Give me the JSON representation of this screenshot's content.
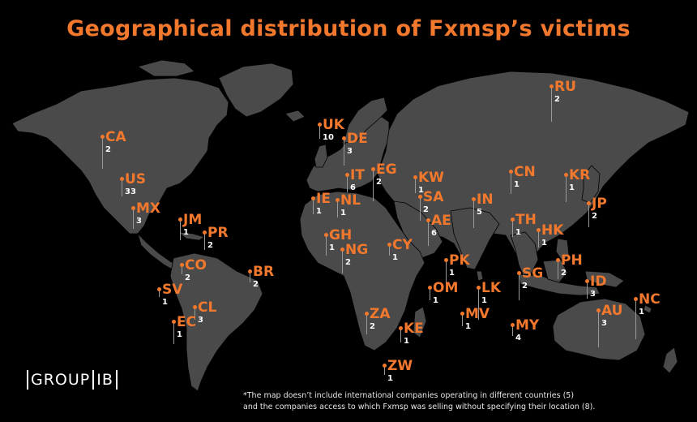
{
  "title": "Geographical distribution of Fxmsp’s victims",
  "colors": {
    "background": "#000000",
    "land": "#4a4a4a",
    "accent": "#f2782d",
    "count_text": "#ffffff",
    "stem": "#9a9a9a"
  },
  "countries": [
    {
      "code": "RU",
      "count": "2"
    },
    {
      "code": "CA",
      "count": "2"
    },
    {
      "code": "UK",
      "count": "10"
    },
    {
      "code": "DE",
      "count": "3"
    },
    {
      "code": "US",
      "count": "33"
    },
    {
      "code": "IT",
      "count": "6"
    },
    {
      "code": "EG",
      "count": "2"
    },
    {
      "code": "KW",
      "count": "1"
    },
    {
      "code": "CN",
      "count": "1"
    },
    {
      "code": "KR",
      "count": "1"
    },
    {
      "code": "IE",
      "count": "1"
    },
    {
      "code": "NL",
      "count": "1"
    },
    {
      "code": "SA",
      "count": "2"
    },
    {
      "code": "IN",
      "count": "5"
    },
    {
      "code": "JP",
      "count": "2"
    },
    {
      "code": "MX",
      "count": "3"
    },
    {
      "code": "JM",
      "count": "1"
    },
    {
      "code": "AE",
      "count": "6"
    },
    {
      "code": "TH",
      "count": "1"
    },
    {
      "code": "PR",
      "count": "2"
    },
    {
      "code": "GH",
      "count": "1"
    },
    {
      "code": "HK",
      "count": "1"
    },
    {
      "code": "NG",
      "count": "2"
    },
    {
      "code": "CY",
      "count": "1"
    },
    {
      "code": "PK",
      "count": "1"
    },
    {
      "code": "CO",
      "count": "2"
    },
    {
      "code": "BR",
      "count": "2"
    },
    {
      "code": "PH",
      "count": "2"
    },
    {
      "code": "SG",
      "count": "2"
    },
    {
      "code": "SV",
      "count": "1"
    },
    {
      "code": "OM",
      "count": "1"
    },
    {
      "code": "LK",
      "count": "1"
    },
    {
      "code": "ID",
      "count": "3"
    },
    {
      "code": "NC",
      "count": "1"
    },
    {
      "code": "CL",
      "count": "3"
    },
    {
      "code": "EC",
      "count": "1"
    },
    {
      "code": "ZA",
      "count": "2"
    },
    {
      "code": "MV",
      "count": "1"
    },
    {
      "code": "AU",
      "count": "3"
    },
    {
      "code": "MY",
      "count": "4"
    },
    {
      "code": "KE",
      "count": "1"
    },
    {
      "code": "ZW",
      "count": "1"
    }
  ],
  "logo": {
    "left": "GROUP",
    "right": "IB"
  },
  "footnote": {
    "line1": "*The map doesn’t include international companies operating in different countries (5)",
    "line2": "and the companies access to which Fxmsp was selling without specifying their location (8)."
  }
}
